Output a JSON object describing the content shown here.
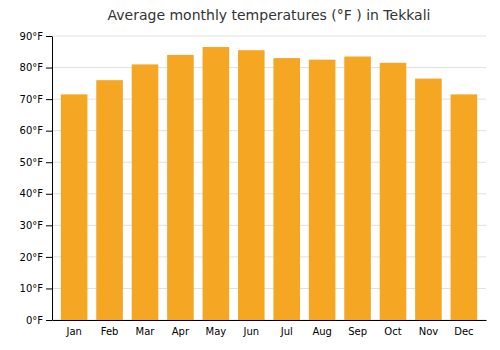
{
  "chart_data": {
    "type": "bar",
    "title": "Average monthly temperatures (°F ) in Tekkali",
    "categories": [
      "Jan",
      "Feb",
      "Mar",
      "Apr",
      "May",
      "Jun",
      "Jul",
      "Aug",
      "Sep",
      "Oct",
      "Nov",
      "Dec"
    ],
    "values": [
      71.5,
      76,
      81,
      84,
      86.5,
      85.5,
      83,
      82.5,
      83.5,
      81.5,
      76.5,
      71.5
    ],
    "color": "#F5A623",
    "ylim": [
      0,
      90
    ],
    "yticks": [
      {
        "value": 0,
        "label": "0°F"
      },
      {
        "value": 10,
        "label": "10°F"
      },
      {
        "value": 20,
        "label": "20°F"
      },
      {
        "value": 30,
        "label": "30°F"
      },
      {
        "value": 40,
        "label": "40°F"
      },
      {
        "value": 50,
        "label": "50°F"
      },
      {
        "value": 60,
        "label": "60°F"
      },
      {
        "value": 70,
        "label": "70°F"
      },
      {
        "value": 80,
        "label": "80°F"
      },
      {
        "value": 90,
        "label": "90°F"
      }
    ],
    "grid": true
  }
}
